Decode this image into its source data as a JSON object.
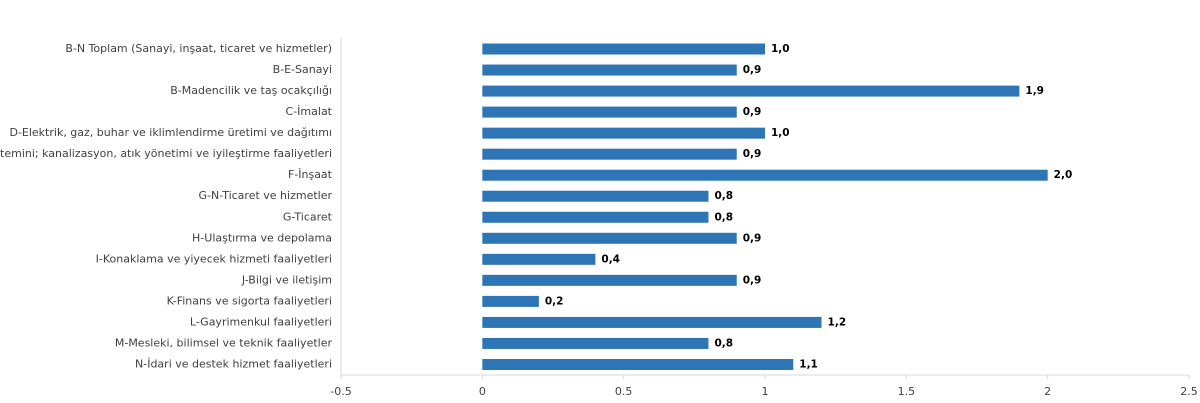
{
  "chart_data": {
    "type": "bar",
    "orientation": "horizontal",
    "color": "#2e75b6",
    "categories": [
      "B-N Toplam (Sanayi, inşaat, ticaret ve hizmetler)",
      "B-E-Sanayi",
      "B-Madencilik ve taş ocakçılığı",
      "C-İmalat",
      "D-Elektrik, gaz, buhar ve iklimlendirme üretimi ve dağıtımı",
      "E-Su temini; kanalizasyon, atık yönetimi ve iyileştirme faaliyetleri",
      "F-İnşaat",
      "G-N-Ticaret ve hizmetler",
      "G-Ticaret",
      "H-Ulaştırma ve depolama",
      "I-Konaklama ve yiyecek hizmeti faaliyetleri",
      "J-Bilgi ve iletişim",
      "K-Finans ve sigorta faaliyetleri",
      "L-Gayrimenkul faaliyetleri",
      "M-Mesleki, bilimsel ve teknik faaliyetler",
      "N-İdari ve destek hizmet faaliyetleri"
    ],
    "values": [
      1.0,
      0.9,
      1.9,
      0.9,
      1.0,
      0.9,
      2.0,
      0.8,
      0.8,
      0.9,
      0.4,
      0.9,
      0.2,
      1.2,
      0.8,
      1.1
    ],
    "value_labels": [
      "1,0",
      "0,9",
      "1,9",
      "0,9",
      "1,0",
      "0,9",
      "2,0",
      "0,8",
      "0,8",
      "0,9",
      "0,4",
      "0,9",
      "0,2",
      "1,2",
      "0,8",
      "1,1"
    ],
    "xlim": [
      -0.5,
      2.5
    ],
    "xticks": [
      -0.5,
      0,
      0.5,
      1,
      1.5,
      2,
      2.5
    ]
  }
}
